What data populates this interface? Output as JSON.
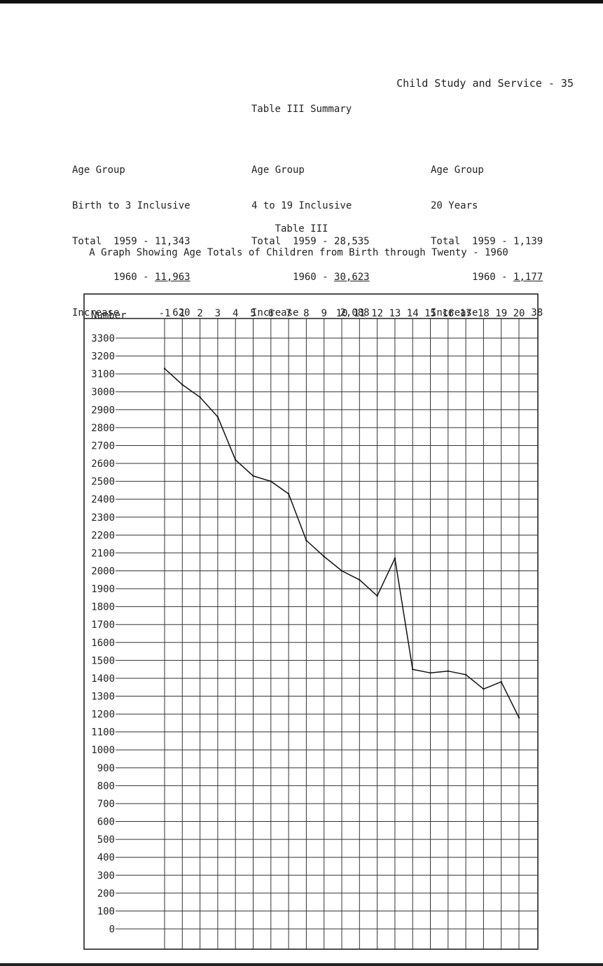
{
  "header": {
    "running_title": "Child Study and Service - 35"
  },
  "summary": {
    "title": "Table III Summary",
    "groups": [
      {
        "label": "Age Group",
        "range": "Birth to 3 Inclusive",
        "total_label": "Total",
        "year1": "1959",
        "total1": "11,343",
        "year2": "1960",
        "total2": "11,963",
        "increase_label": "Increase",
        "increase": "620"
      },
      {
        "label": "Age Group",
        "range": "4 to 19 Inclusive",
        "total_label": "Total",
        "year1": "1959",
        "total1": "28,535",
        "year2": "1960",
        "total2": "30,623",
        "increase_label": "Increase",
        "increase": "2,088"
      },
      {
        "label": "Age Group",
        "range": "20 Years",
        "total_label": "Total",
        "year1": "1959",
        "total1": "1,139",
        "year2": "1960",
        "total2": "1,177",
        "increase_label": "Increase",
        "increase": "38"
      }
    ]
  },
  "chart_heading": "Table III",
  "chart_data": {
    "type": "line",
    "title": "A Graph Showing Age Totals of Children from Birth through Twenty - 1960",
    "xlabel": "",
    "ylabel": "Number",
    "categories": [
      "-1",
      "1",
      "2",
      "3",
      "4",
      "5",
      "6",
      "7",
      "8",
      "9",
      "10",
      "11",
      "12",
      "13",
      "14",
      "15",
      "16",
      "17",
      "18",
      "19",
      "20"
    ],
    "values": [
      3130,
      3040,
      2970,
      2860,
      2620,
      2530,
      2500,
      2430,
      2170,
      2080,
      2000,
      1950,
      1860,
      2070,
      1450,
      1430,
      1440,
      1420,
      1340,
      1380,
      1180
    ],
    "yticks": [
      0,
      100,
      200,
      300,
      400,
      500,
      600,
      700,
      800,
      900,
      1000,
      1100,
      1200,
      1300,
      1400,
      1500,
      1600,
      1700,
      1800,
      1900,
      2000,
      2100,
      2200,
      2300,
      2400,
      2500,
      2600,
      2700,
      2800,
      2900,
      3000,
      3100,
      3200,
      3300
    ],
    "ylim": [
      0,
      3300
    ],
    "grid": true,
    "legend": "none"
  }
}
